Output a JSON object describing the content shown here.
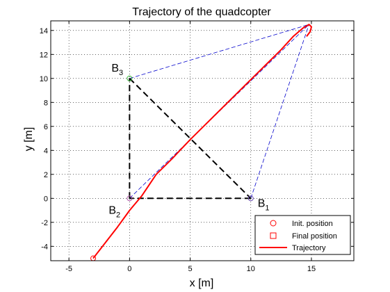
{
  "chart_data": {
    "type": "line",
    "title": "Trajectory of the quadcopter",
    "xlabel": "x [m]",
    "ylabel": "y [m]",
    "xlim": [
      -6.5,
      18.5
    ],
    "ylim": [
      -5.2,
      14.8
    ],
    "xticks": [
      -5,
      0,
      5,
      10,
      15
    ],
    "yticks": [
      -4,
      -2,
      0,
      2,
      4,
      6,
      8,
      10,
      12,
      14
    ],
    "grid": true,
    "legend_placement": "bottom-right",
    "legend": [
      {
        "label": "Init. position",
        "marker": "circle",
        "color": "#ff0000"
      },
      {
        "label": "Final position",
        "marker": "square",
        "color": "#ff0000"
      },
      {
        "label": "Trajectory",
        "marker": "line",
        "color": "#ff0000"
      }
    ],
    "triangle": {
      "color": "#000000",
      "points": [
        [
          10,
          0
        ],
        [
          0,
          0
        ],
        [
          0,
          10
        ]
      ]
    },
    "waypoints": [
      {
        "name": "B",
        "sub": "1",
        "x": 10,
        "y": 0,
        "marker_color": "#6b4fb0"
      },
      {
        "name": "B",
        "sub": "2",
        "x": 0,
        "y": 0,
        "marker_color": "#b05aa8"
      },
      {
        "name": "B",
        "sub": "3",
        "x": 0,
        "y": 10,
        "marker_color": "#39b539"
      }
    ],
    "apex": {
      "x": 14.8,
      "y": 14.5
    },
    "projection_lines_color": "#0000cc",
    "trajectory": {
      "name": "Trajectory",
      "color": "#ff0000",
      "x": [
        -3.0,
        -2.0,
        -1.0,
        0.0,
        1.0,
        2.2,
        3.5,
        5.0,
        7.0,
        9.0,
        11.0,
        12.5,
        13.5,
        14.3,
        14.8,
        15.0,
        14.9,
        14.6
      ],
      "y": [
        -5.0,
        -3.7,
        -2.4,
        -1.0,
        0.2,
        2.0,
        3.3,
        4.9,
        6.9,
        8.9,
        10.9,
        12.4,
        13.5,
        14.2,
        14.5,
        14.3,
        13.9,
        13.5
      ]
    }
  }
}
